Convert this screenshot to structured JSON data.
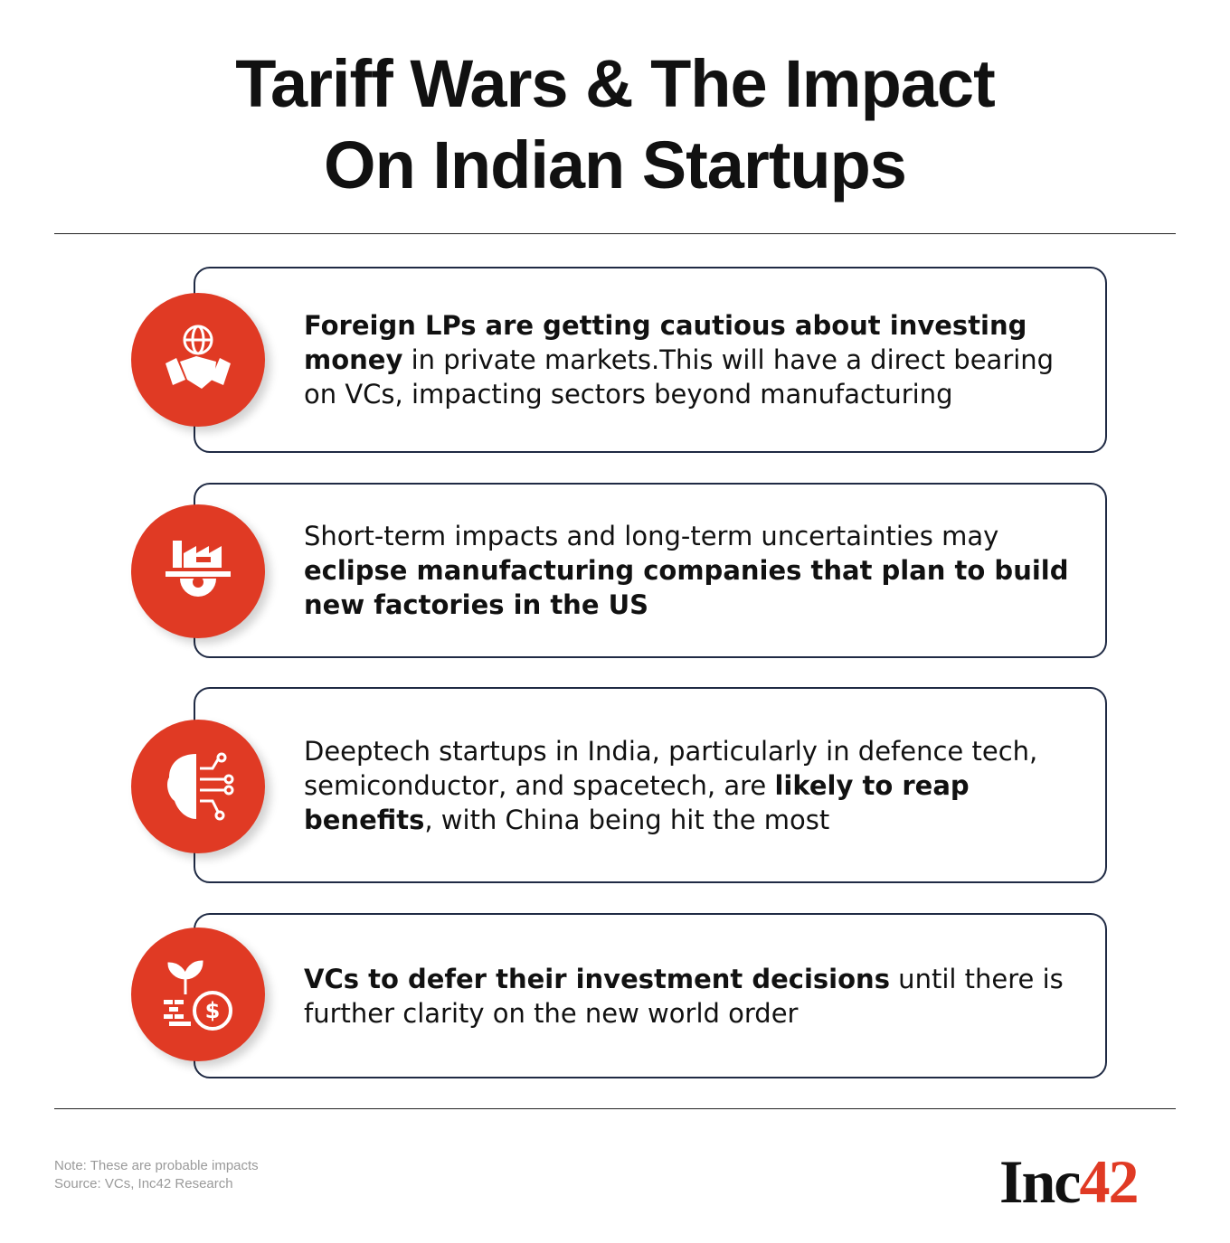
{
  "header": {
    "title_lines": [
      "Tariff Wars & The Impact",
      "On Indian Startups"
    ]
  },
  "items": [
    {
      "segments": [
        {
          "text": "Foreign LPs are getting cautious about investing money",
          "bold": true
        },
        {
          "text": " in private markets.This will have a direct bearing on VCs, impacting sectors beyond manufacturing",
          "bold": false
        }
      ]
    },
    {
      "segments": [
        {
          "text": "Short-term impacts and long-term uncertainties may ",
          "bold": false
        },
        {
          "text": "eclipse manufacturing companies that plan to build new factories in the US",
          "bold": true
        }
      ]
    },
    {
      "segments": [
        {
          "text": "Deeptech startups in India, particularly in defence tech, semiconductor, and spacetech, are ",
          "bold": false
        },
        {
          "text": "likely to reap benefits",
          "bold": true
        },
        {
          "text": ", with China being hit the most",
          "bold": false
        }
      ]
    },
    {
      "segments": [
        {
          "text": "VCs to defer their investment decisions",
          "bold": true
        },
        {
          "text": " until there is further clarity on the new world order",
          "bold": false
        }
      ]
    }
  ],
  "footer": {
    "note": "Note: These are probable impacts",
    "source": "Source: VCs, Inc42 Research",
    "logo": {
      "main": "Inc",
      "accent": "42"
    }
  }
}
